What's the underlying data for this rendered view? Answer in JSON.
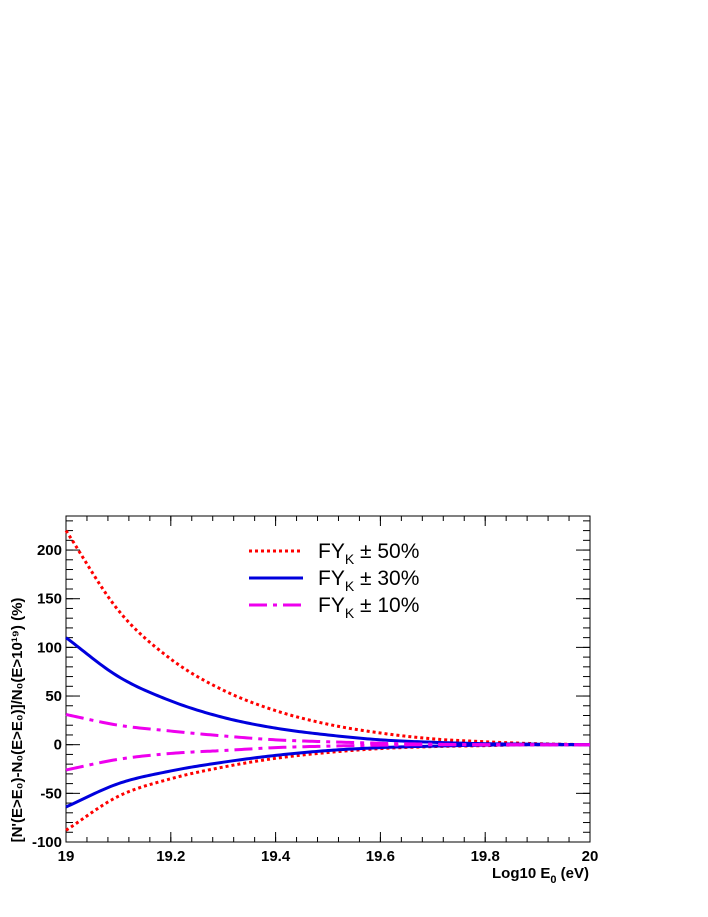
{
  "chart_data": {
    "type": "line",
    "xlabel": {
      "main": "Log10 E",
      "sub": "0",
      "tail": " (eV)"
    },
    "ylabel": "[N'(E>E₀)-N₀(E>E₀)]/N₀(E>10¹⁹) (%)",
    "xlim": [
      19,
      20
    ],
    "ylim": [
      -100,
      235
    ],
    "xticks": [
      "19",
      "19.2",
      "19.4",
      "19.6",
      "19.8",
      "20"
    ],
    "yticks": [
      "-100",
      "-50",
      "0",
      "50",
      "100",
      "150",
      "200"
    ],
    "grid": false,
    "legend_position": "top-center",
    "x": [
      19.0,
      19.1,
      19.2,
      19.3,
      19.4,
      19.5,
      19.6,
      19.7,
      19.8,
      19.9,
      20.0
    ],
    "series": [
      {
        "name": "FY_K ± 50%",
        "legend_main": "FY",
        "legend_sub": "K",
        "legend_tail": " ± 50%",
        "color": "#ff0000",
        "style": "dotted",
        "upper": [
          220,
          138,
          88,
          56,
          35,
          21,
          12,
          6,
          3,
          1,
          0
        ],
        "lower": [
          -88,
          -53,
          -35,
          -23,
          -14,
          -8,
          -4,
          -2,
          -1,
          0,
          0
        ]
      },
      {
        "name": "FY_K ± 30%",
        "legend_main": "FY",
        "legend_sub": "K",
        "legend_tail": " ± 30%",
        "color": "#0000dd",
        "style": "solid",
        "upper": [
          110,
          70,
          45,
          28,
          17,
          10,
          5,
          2.5,
          1,
          0.5,
          0
        ],
        "lower": [
          -64,
          -40,
          -27,
          -18,
          -11,
          -6,
          -3,
          -1.5,
          -0.5,
          0,
          0
        ]
      },
      {
        "name": "FY_K ± 10%",
        "legend_main": "FY",
        "legend_sub": "K",
        "legend_tail": " ± 10%",
        "color": "#ee00ee",
        "style": "dashdot",
        "upper": [
          31,
          20,
          14,
          9,
          5,
          3,
          1.5,
          0.5,
          0,
          0,
          0
        ],
        "lower": [
          -26,
          -15,
          -9,
          -6,
          -3,
          -1.5,
          -0.5,
          0,
          0,
          0,
          0
        ]
      }
    ]
  }
}
